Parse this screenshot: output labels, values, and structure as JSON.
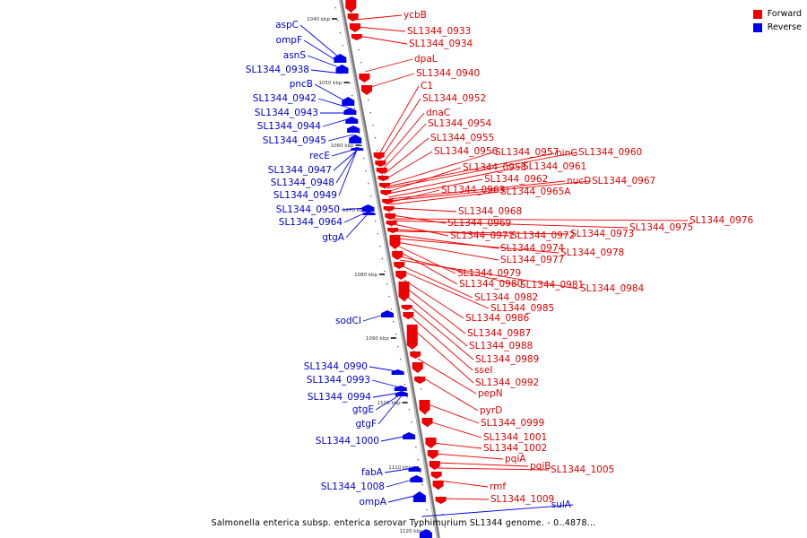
{
  "legend": [
    {
      "label": "Forward",
      "color": "#ee0000"
    },
    {
      "label": "Reverse",
      "color": "#0000ee"
    }
  ],
  "caption": "Salmonella enterica subsp. enterica serovar Typhimurium SL1344 genome. - 0..4878...",
  "colors": {
    "forward": "#ee0000",
    "reverse": "#0000ee",
    "backbone": "#888888"
  },
  "ticks": [
    "1040 kbp",
    "1050 kbp",
    "1060 kbp",
    "1070 kbp",
    "1080 kbp",
    "1090 kbp",
    "1100 kbp",
    "1110 kbp",
    "1120 kbp"
  ],
  "forward_labels": [
    "ycbB",
    "SL1344_0933",
    "SL1344_0934",
    "dpaL",
    "SL1344_0940",
    "C1",
    "SL1344_0952",
    "dnaC",
    "SL1344_0954",
    "SL1344_0955",
    "SL1344_0956",
    "SL1344_0957",
    "ninG",
    "SL1344_0960",
    "SL1344_0958",
    "SL1344_0961",
    "SL1344_0962",
    "nucD",
    "SL1344_0967",
    "SL1344_0963",
    "SL1344_0965A",
    "SL1344_0968",
    "SL1344_0969",
    "SL1344_0976",
    "SL1344_0975",
    "SL1344_0971",
    "SL1344_0972",
    "SL1344_0973",
    "SL1344_0974",
    "SL1344_0978",
    "SL1344_0977",
    "SL1344_0979",
    "SL1344_0980",
    "SL1344_0981",
    "SL1344_0984",
    "SL1344_0982",
    "SL1344_0985",
    "SL1344_0986",
    "SL1344_0987",
    "SL1344_0988",
    "SL1344_0989",
    "sseI",
    "SL1344_0992",
    "pepN",
    "pyrD",
    "SL1344_0999",
    "SL1344_1001",
    "SL1344_1002",
    "pqiA",
    "pqiB",
    "SL1344_1005",
    "rmf",
    "SL1344_1009"
  ],
  "reverse_labels": [
    "aspC",
    "ompF",
    "asnS",
    "SL1344_0938",
    "pncB",
    "SL1344_0942",
    "SL1344_0943",
    "SL1344_0944",
    "SL1344_0945",
    "recE",
    "SL1344_0947",
    "SL1344_0948",
    "SL1344_0949",
    "SL1344_0950",
    "SL1344_0964",
    "gtgA",
    "sodCI",
    "SL1344_0990",
    "SL1344_0993",
    "SL1344_0994",
    "gtgE",
    "gtgF",
    "SL1344_1000",
    "fabA",
    "SL1344_1008",
    "ompA",
    "sulA"
  ]
}
